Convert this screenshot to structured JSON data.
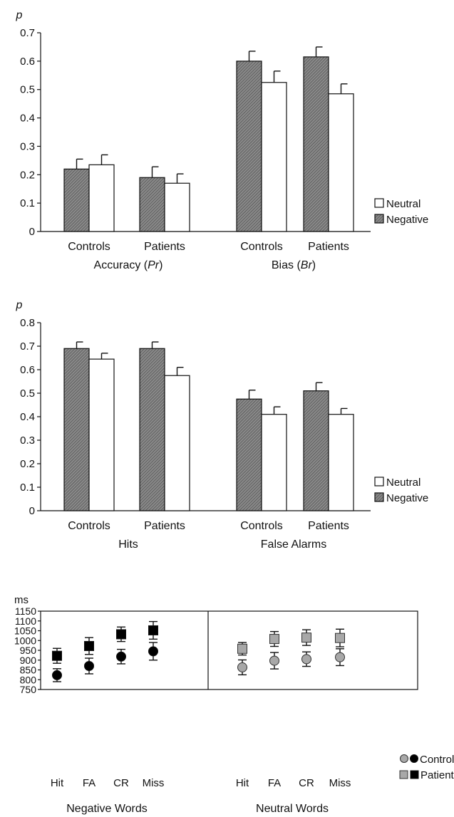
{
  "chart_data": [
    {
      "type": "bar",
      "ylabel": "p",
      "ylim": [
        0,
        0.7
      ],
      "yticks": [
        "0",
        "0.1",
        "0.2",
        "0.3",
        "0.4",
        "0.5",
        "0.6",
        "0.7"
      ],
      "categories": [
        "Controls",
        "Patients",
        "Controls",
        "Patients"
      ],
      "groups": [
        {
          "label_prefix": "Accuracy (",
          "label_italic": "Pr",
          "label_suffix": ")"
        },
        {
          "label_prefix": "Bias (",
          "label_italic": "Br",
          "label_suffix": ")"
        }
      ],
      "series": [
        {
          "name": "Negative",
          "values": [
            0.22,
            0.19,
            0.6,
            0.615
          ],
          "errors": [
            0.035,
            0.038,
            0.035,
            0.035
          ]
        },
        {
          "name": "Neutral",
          "values": [
            0.235,
            0.17,
            0.525,
            0.485
          ],
          "errors": [
            0.035,
            0.033,
            0.04,
            0.035
          ]
        }
      ],
      "legend": [
        "Neutral",
        "Negative"
      ]
    },
    {
      "type": "bar",
      "ylabel": "p",
      "ylim": [
        0,
        0.8
      ],
      "yticks": [
        "0",
        "0.1",
        "0.2",
        "0.3",
        "0.4",
        "0.5",
        "0.6",
        "0.7",
        "0.8"
      ],
      "categories": [
        "Controls",
        "Patients",
        "Controls",
        "Patients"
      ],
      "groups": [
        {
          "label_prefix": "Hits",
          "label_italic": "",
          "label_suffix": ""
        },
        {
          "label_prefix": "False Alarms",
          "label_italic": "",
          "label_suffix": ""
        }
      ],
      "series": [
        {
          "name": "Negative",
          "values": [
            0.69,
            0.69,
            0.475,
            0.51
          ],
          "errors": [
            0.028,
            0.028,
            0.038,
            0.035
          ]
        },
        {
          "name": "Neutral",
          "values": [
            0.645,
            0.575,
            0.41,
            0.41
          ],
          "errors": [
            0.025,
            0.035,
            0.032,
            0.025
          ]
        }
      ],
      "legend": [
        "Neutral",
        "Negative"
      ]
    },
    {
      "type": "scatter",
      "ylabel": "ms",
      "ylim": [
        750,
        1150
      ],
      "yticks": [
        "750",
        "800",
        "850",
        "900",
        "950",
        "1000",
        "1050",
        "1100",
        "1150"
      ],
      "categories": [
        "Hit",
        "FA",
        "CR",
        "Miss",
        "Hit",
        "FA",
        "CR",
        "Miss"
      ],
      "groups": [
        "Negative Words",
        "Neutral Words"
      ],
      "series": [
        {
          "name": "Controls",
          "negative": [
            823,
            870,
            918,
            945
          ],
          "neutral": [
            863,
            897,
            905,
            915
          ],
          "neg_err": [
            33,
            40,
            37,
            45
          ],
          "neu_err": [
            38,
            42,
            37,
            43
          ]
        },
        {
          "name": "Patients",
          "negative": [
            922,
            972,
            1032,
            1052
          ],
          "neutral": [
            958,
            1008,
            1015,
            1013
          ],
          "neg_err": [
            38,
            43,
            37,
            45
          ],
          "neu_err": [
            32,
            38,
            40,
            45
          ]
        }
      ],
      "legend": [
        "Controls",
        "Patients"
      ],
      "colors": {
        "negative": "#000000",
        "neutral": "#a8a8a8"
      }
    }
  ]
}
